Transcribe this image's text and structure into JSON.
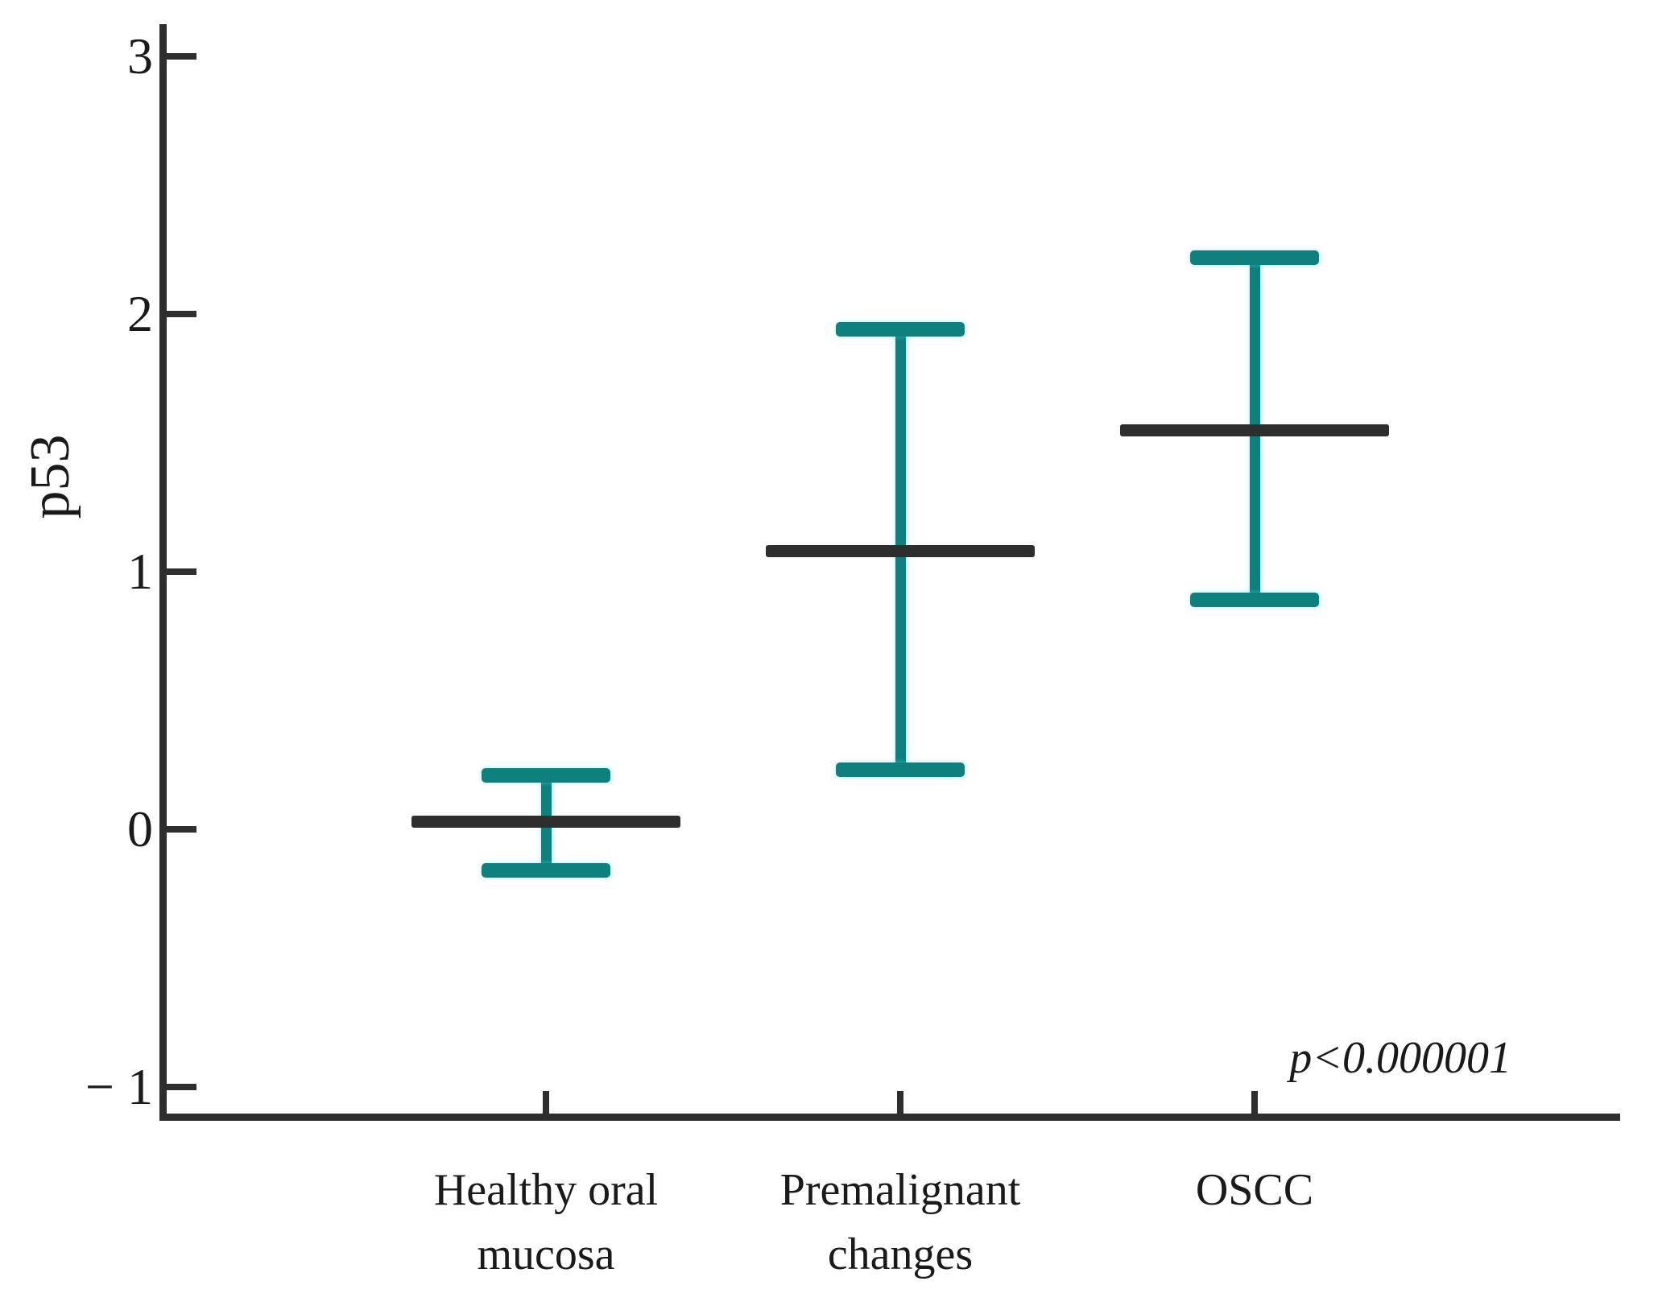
{
  "figure": {
    "background": "#ffffff"
  },
  "chart_data": {
    "type": "errorbar",
    "title": "",
    "xlabel": "",
    "ylabel": "p53",
    "annotation": "p<0.000001",
    "grid": false,
    "legend": null,
    "y_axis": {
      "range": [
        -1.12,
        3.13
      ],
      "ticks": [
        {
          "value": 3,
          "label": "3"
        },
        {
          "value": 2,
          "label": "2"
        },
        {
          "value": 1,
          "label": "1"
        },
        {
          "value": 0,
          "label": "0"
        },
        {
          "value": -1,
          "label": "− 1"
        }
      ]
    },
    "groups": [
      {
        "label": "Healthy oral mucosa",
        "label_lines": [
          "Healthy oral",
          "mucosa"
        ],
        "mean": 0.03,
        "upper": 0.21,
        "lower": -0.16
      },
      {
        "label": "Premalignant changes",
        "label_lines": [
          "Premalignant",
          "changes"
        ],
        "mean": 1.08,
        "upper": 1.94,
        "lower": 0.23
      },
      {
        "label": "OSCC",
        "label_lines": [
          "OSCC"
        ],
        "mean": 1.55,
        "upper": 2.22,
        "lower": 0.89
      }
    ],
    "colors": {
      "error_bar": "#0e817e",
      "mean_line": "#2e2e2e",
      "axis": "#2e2e2e",
      "text": "#1a1a1a"
    }
  }
}
